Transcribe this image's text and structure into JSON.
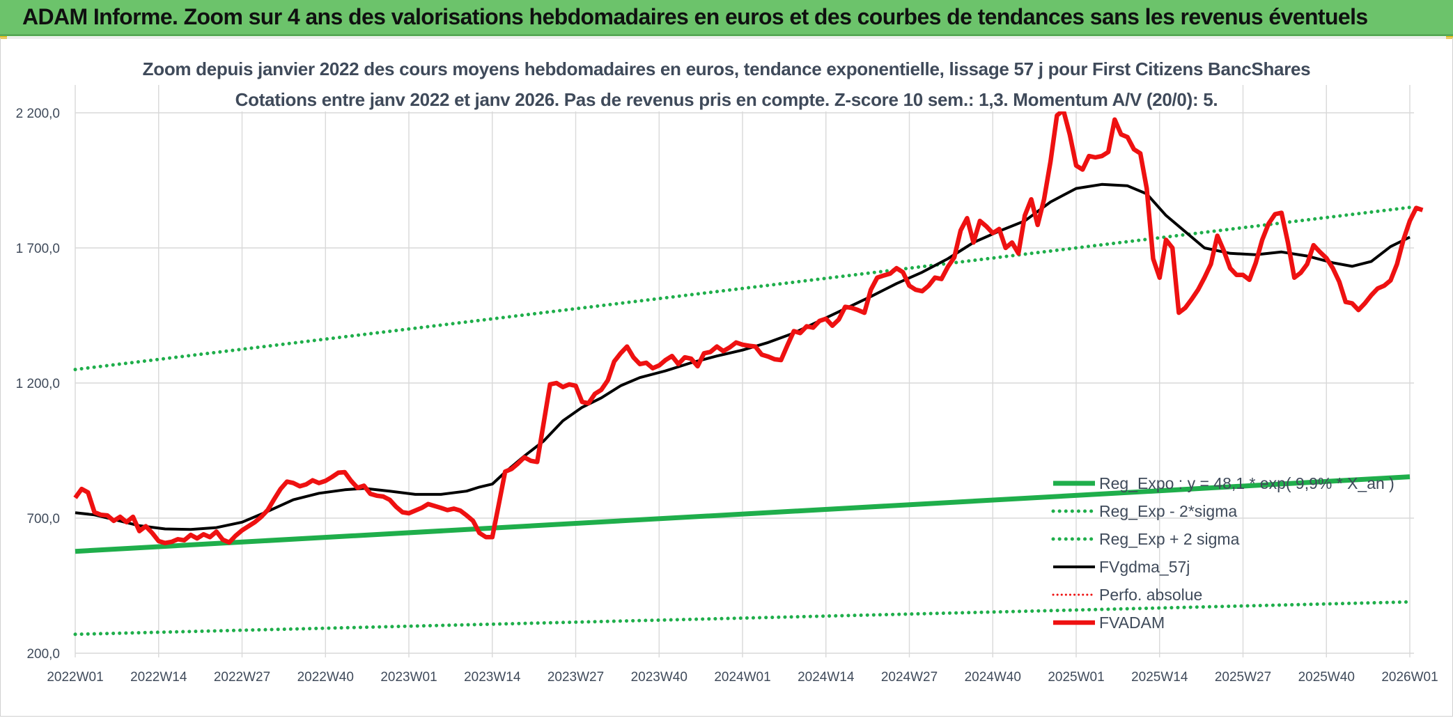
{
  "banner": {
    "title": "ADAM Informe. Zoom sur 4 ans des valorisations hebdomadaires en euros et des courbes de tendances sans les revenus éventuels"
  },
  "colors": {
    "banner_bg": "#6cc36b",
    "fvadam": "#ee1111",
    "fvgdma": "#000000",
    "reg_expo": "#1fae4b",
    "perfo_absolue": "#ee1111",
    "grid": "#d9d9d9"
  },
  "chart_data": {
    "type": "line",
    "title": "Zoom depuis janvier 2022 des cours moyens hebdomadaires en euros, tendance exponentielle, lissage 57 j pour First Citizens BancShares",
    "subtitle": "Cotations entre janv 2022 et janv 2026. Pas de revenus pris en compte. Z-score 10 sem.: 1,3. Momentum A/V (20/0): 5.",
    "xlabel": "",
    "ylabel": "",
    "ylim": [
      200,
      2200
    ],
    "yticks": [
      "200,0",
      "700,0",
      "1 200,0",
      "1 700,0",
      "2 200,0"
    ],
    "ytick_values": [
      200,
      700,
      1200,
      1700,
      2200
    ],
    "xticks": [
      "2022W01",
      "2022W14",
      "2022W27",
      "2022W40",
      "2023W01",
      "2023W14",
      "2023W27",
      "2023W40",
      "2024W01",
      "2024W14",
      "2024W27",
      "2024W40",
      "2025W01",
      "2025W14",
      "2025W27",
      "2025W40",
      "2026W01"
    ],
    "x_range_weeks": [
      0,
      208
    ],
    "grid": true,
    "legend_position": "bottom-right",
    "series": [
      {
        "name": "Reg_Expo : y = 48,1 * exp( 9,9% * X_an )",
        "style": "solid-thick",
        "points": [
          [
            0,
            577
          ],
          [
            208,
            853
          ]
        ]
      },
      {
        "name": "Reg_Exp - 2*sigma",
        "style": "dotted",
        "points": [
          [
            0,
            270
          ],
          [
            208,
            390
          ]
        ]
      },
      {
        "name": "Reg_Exp + 2 sigma",
        "style": "dotted",
        "points": [
          [
            0,
            1250
          ],
          [
            208,
            1850
          ]
        ]
      },
      {
        "name": "FVgdma_57j",
        "style": "solid",
        "points": [
          [
            0,
            720
          ],
          [
            3,
            712
          ],
          [
            6,
            695
          ],
          [
            10,
            672
          ],
          [
            14,
            660
          ],
          [
            18,
            658
          ],
          [
            22,
            665
          ],
          [
            26,
            685
          ],
          [
            30,
            725
          ],
          [
            34,
            768
          ],
          [
            38,
            792
          ],
          [
            42,
            805
          ],
          [
            45,
            810
          ],
          [
            49,
            800
          ],
          [
            53,
            788
          ],
          [
            57,
            788
          ],
          [
            61,
            800
          ],
          [
            63,
            815
          ],
          [
            65,
            826
          ],
          [
            67,
            870
          ],
          [
            70,
            930
          ],
          [
            73,
            985
          ],
          [
            76,
            1060
          ],
          [
            79,
            1110
          ],
          [
            82,
            1145
          ],
          [
            85,
            1190
          ],
          [
            88,
            1220
          ],
          [
            92,
            1245
          ],
          [
            96,
            1275
          ],
          [
            100,
            1300
          ],
          [
            104,
            1322
          ],
          [
            108,
            1350
          ],
          [
            112,
            1385
          ],
          [
            116,
            1430
          ],
          [
            120,
            1475
          ],
          [
            124,
            1520
          ],
          [
            128,
            1568
          ],
          [
            132,
            1610
          ],
          [
            136,
            1660
          ],
          [
            140,
            1720
          ],
          [
            144,
            1762
          ],
          [
            148,
            1800
          ],
          [
            152,
            1870
          ],
          [
            156,
            1920
          ],
          [
            160,
            1935
          ],
          [
            164,
            1930
          ],
          [
            167,
            1900
          ],
          [
            170,
            1820
          ],
          [
            173,
            1760
          ],
          [
            176,
            1700
          ],
          [
            180,
            1680
          ],
          [
            184,
            1675
          ],
          [
            188,
            1685
          ],
          [
            192,
            1670
          ],
          [
            196,
            1645
          ],
          [
            199,
            1632
          ],
          [
            202,
            1650
          ],
          [
            205,
            1705
          ],
          [
            208,
            1740
          ]
        ]
      },
      {
        "name": "Perfo. absolue",
        "style": "dotted",
        "points": []
      },
      {
        "name": "FVADAM",
        "style": "solid-thick",
        "points": [
          [
            0,
            775
          ],
          [
            1,
            808
          ],
          [
            2,
            795
          ],
          [
            3,
            722
          ],
          [
            4,
            712
          ],
          [
            5,
            710
          ],
          [
            6,
            690
          ],
          [
            7,
            705
          ],
          [
            8,
            685
          ],
          [
            9,
            705
          ],
          [
            10,
            652
          ],
          [
            11,
            670
          ],
          [
            12,
            645
          ],
          [
            13,
            615
          ],
          [
            14,
            608
          ],
          [
            15,
            612
          ],
          [
            16,
            622
          ],
          [
            17,
            618
          ],
          [
            18,
            638
          ],
          [
            19,
            625
          ],
          [
            20,
            640
          ],
          [
            21,
            630
          ],
          [
            22,
            650
          ],
          [
            23,
            620
          ],
          [
            24,
            610
          ],
          [
            25,
            635
          ],
          [
            26,
            655
          ],
          [
            27,
            670
          ],
          [
            28,
            685
          ],
          [
            29,
            705
          ],
          [
            30,
            730
          ],
          [
            31,
            770
          ],
          [
            32,
            808
          ],
          [
            33,
            835
          ],
          [
            34,
            830
          ],
          [
            35,
            818
          ],
          [
            36,
            825
          ],
          [
            37,
            840
          ],
          [
            38,
            830
          ],
          [
            39,
            838
          ],
          [
            40,
            852
          ],
          [
            41,
            868
          ],
          [
            42,
            870
          ],
          [
            43,
            838
          ],
          [
            44,
            812
          ],
          [
            45,
            820
          ],
          [
            46,
            790
          ],
          [
            47,
            783
          ],
          [
            48,
            780
          ],
          [
            49,
            768
          ],
          [
            50,
            742
          ],
          [
            51,
            722
          ],
          [
            52,
            718
          ],
          [
            53,
            728
          ],
          [
            54,
            738
          ],
          [
            55,
            752
          ],
          [
            56,
            745
          ],
          [
            57,
            738
          ],
          [
            58,
            730
          ],
          [
            59,
            735
          ],
          [
            60,
            728
          ],
          [
            61,
            710
          ],
          [
            62,
            690
          ],
          [
            63,
            645
          ],
          [
            64,
            630
          ],
          [
            65,
            630
          ],
          [
            66,
            750
          ],
          [
            67,
            872
          ],
          [
            68,
            882
          ],
          [
            69,
            902
          ],
          [
            70,
            925
          ],
          [
            71,
            912
          ],
          [
            72,
            908
          ],
          [
            73,
            1050
          ],
          [
            74,
            1195
          ],
          [
            75,
            1200
          ],
          [
            76,
            1185
          ],
          [
            77,
            1195
          ],
          [
            78,
            1190
          ],
          [
            79,
            1130
          ],
          [
            80,
            1125
          ],
          [
            81,
            1160
          ],
          [
            82,
            1175
          ],
          [
            83,
            1210
          ],
          [
            84,
            1280
          ],
          [
            85,
            1310
          ],
          [
            86,
            1335
          ],
          [
            87,
            1295
          ],
          [
            88,
            1270
          ],
          [
            89,
            1275
          ],
          [
            90,
            1255
          ],
          [
            91,
            1265
          ],
          [
            92,
            1285
          ],
          [
            93,
            1300
          ],
          [
            94,
            1270
          ],
          [
            95,
            1295
          ],
          [
            96,
            1290
          ],
          [
            97,
            1262
          ],
          [
            98,
            1310
          ],
          [
            99,
            1315
          ],
          [
            100,
            1335
          ],
          [
            101,
            1318
          ],
          [
            102,
            1332
          ],
          [
            103,
            1350
          ],
          [
            104,
            1342
          ],
          [
            105,
            1338
          ],
          [
            106,
            1335
          ],
          [
            107,
            1305
          ],
          [
            108,
            1298
          ],
          [
            109,
            1288
          ],
          [
            110,
            1285
          ],
          [
            111,
            1340
          ],
          [
            112,
            1392
          ],
          [
            113,
            1385
          ],
          [
            114,
            1410
          ],
          [
            115,
            1405
          ],
          [
            116,
            1430
          ],
          [
            117,
            1438
          ],
          [
            118,
            1412
          ],
          [
            119,
            1435
          ],
          [
            120,
            1482
          ],
          [
            121,
            1478
          ],
          [
            122,
            1470
          ],
          [
            123,
            1460
          ],
          [
            124,
            1545
          ],
          [
            125,
            1590
          ],
          [
            126,
            1598
          ],
          [
            127,
            1605
          ],
          [
            128,
            1625
          ],
          [
            129,
            1610
          ],
          [
            130,
            1560
          ],
          [
            131,
            1545
          ],
          [
            132,
            1540
          ],
          [
            133,
            1560
          ],
          [
            134,
            1590
          ],
          [
            135,
            1585
          ],
          [
            136,
            1630
          ],
          [
            137,
            1665
          ],
          [
            138,
            1765
          ],
          [
            139,
            1810
          ],
          [
            140,
            1720
          ],
          [
            141,
            1800
          ],
          [
            142,
            1780
          ],
          [
            143,
            1755
          ],
          [
            144,
            1770
          ],
          [
            145,
            1700
          ],
          [
            146,
            1720
          ],
          [
            147,
            1680
          ],
          [
            148,
            1820
          ],
          [
            149,
            1880
          ],
          [
            150,
            1785
          ],
          [
            151,
            1880
          ],
          [
            152,
            2020
          ],
          [
            153,
            2190
          ],
          [
            154,
            2210
          ],
          [
            155,
            2120
          ],
          [
            156,
            2005
          ],
          [
            157,
            1990
          ],
          [
            158,
            2040
          ],
          [
            159,
            2035
          ],
          [
            160,
            2040
          ],
          [
            161,
            2055
          ],
          [
            162,
            2175
          ],
          [
            163,
            2120
          ],
          [
            164,
            2110
          ],
          [
            165,
            2065
          ],
          [
            166,
            2050
          ],
          [
            167,
            1920
          ],
          [
            168,
            1660
          ],
          [
            169,
            1590
          ],
          [
            170,
            1730
          ],
          [
            171,
            1700
          ],
          [
            172,
            1460
          ],
          [
            173,
            1478
          ],
          [
            174,
            1510
          ],
          [
            175,
            1545
          ],
          [
            176,
            1590
          ],
          [
            177,
            1640
          ],
          [
            178,
            1745
          ],
          [
            179,
            1690
          ],
          [
            180,
            1625
          ],
          [
            181,
            1600
          ],
          [
            182,
            1600
          ],
          [
            183,
            1582
          ],
          [
            184,
            1645
          ],
          [
            185,
            1730
          ],
          [
            186,
            1790
          ],
          [
            187,
            1825
          ],
          [
            188,
            1830
          ],
          [
            189,
            1720
          ],
          [
            190,
            1590
          ],
          [
            191,
            1608
          ],
          [
            192,
            1640
          ],
          [
            193,
            1710
          ],
          [
            194,
            1685
          ],
          [
            195,
            1662
          ],
          [
            196,
            1625
          ],
          [
            197,
            1575
          ],
          [
            198,
            1500
          ],
          [
            199,
            1495
          ],
          [
            200,
            1470
          ],
          [
            201,
            1495
          ],
          [
            202,
            1525
          ],
          [
            203,
            1550
          ],
          [
            204,
            1560
          ],
          [
            205,
            1580
          ],
          [
            206,
            1640
          ],
          [
            207,
            1730
          ],
          [
            208,
            1800
          ],
          [
            209,
            1848
          ],
          [
            210,
            1840
          ]
        ]
      }
    ]
  }
}
